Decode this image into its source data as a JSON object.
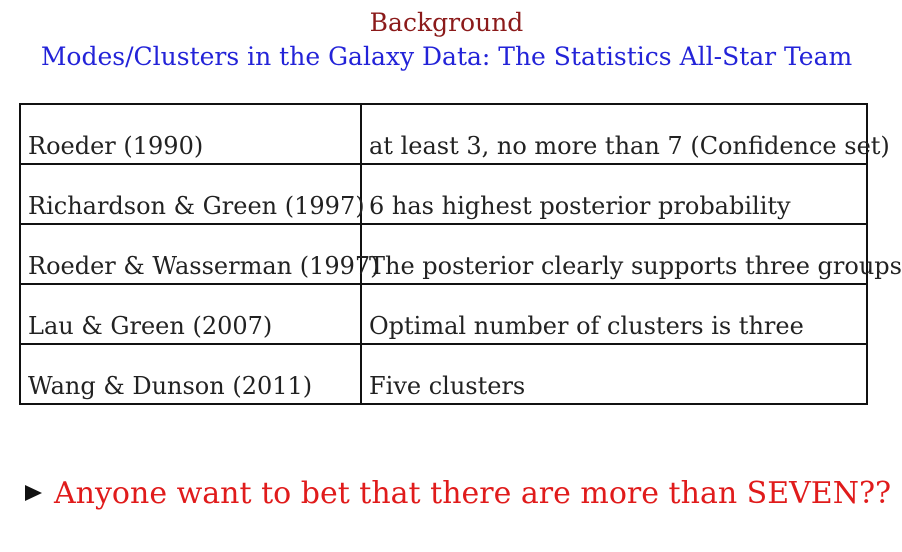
{
  "title": "Background",
  "subtitle": "Modes/Clusters in the Galaxy Data: The Statistics All-Star Team",
  "table": {
    "rows": [
      {
        "author": "Roeder (1990)",
        "finding": "at least 3, no more than 7 (Confidence set)"
      },
      {
        "author": "Richardson & Green (1997)",
        "finding": "6 has highest posterior probability"
      },
      {
        "author": "Roeder & Wasserman (1997)",
        "finding": "The posterior clearly supports three groups"
      },
      {
        "author": "Lau & Green (2007)",
        "finding": "Optimal number of clusters is three"
      },
      {
        "author": "Wang & Dunson (2011)",
        "finding": "Five clusters"
      }
    ]
  },
  "bullet": {
    "icon": "triangle-bullet-icon",
    "text": "Anyone want to bet that there are more than SEVEN??"
  },
  "colors": {
    "title": "#8b1a1a",
    "subtitle": "#2323d8",
    "bullet_text": "#e01b1b",
    "table_border": "#111111"
  }
}
